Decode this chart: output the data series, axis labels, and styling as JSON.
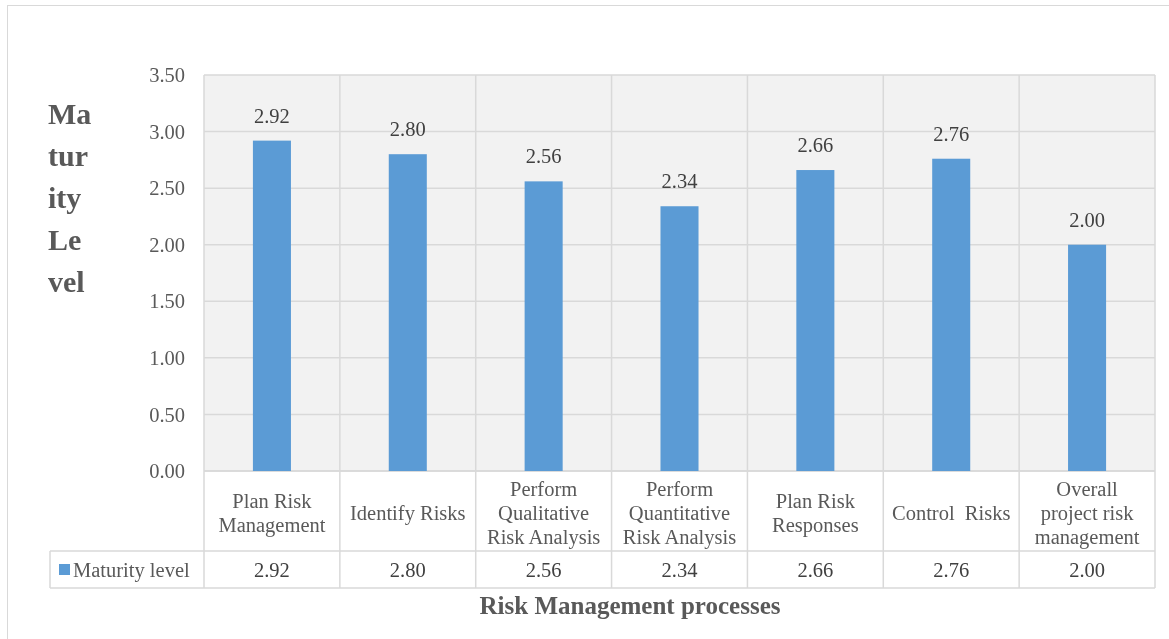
{
  "chart_data": {
    "type": "bar",
    "xlabel": "Risk Management processes",
    "ylabel": "Maturity Level",
    "categories": [
      "Plan Risk Management",
      "Identify Risks",
      "Perform Qualitative Risk Analysis",
      "Perform Quantitative Risk Analysis",
      "Plan Risk Responses",
      "Control  Risks",
      "Overall project risk management"
    ],
    "series": [
      {
        "name": "Maturity level",
        "color": "#5b9bd5",
        "values": [
          2.92,
          2.8,
          2.56,
          2.34,
          2.66,
          2.76,
          2.0
        ],
        "value_labels": [
          "2.92",
          "2.80",
          "2.56",
          "2.34",
          "2.66",
          "2.76",
          "2.00"
        ]
      }
    ],
    "ylim": [
      0,
      3.5
    ],
    "yticks": [
      {
        "value": 0,
        "label": "0.00"
      },
      {
        "value": 0.5,
        "label": "0.50"
      },
      {
        "value": 1,
        "label": "1.00"
      },
      {
        "value": 1.5,
        "label": "1.50"
      },
      {
        "value": 2,
        "label": "2.00"
      },
      {
        "value": 2.5,
        "label": "2.50"
      },
      {
        "value": 3,
        "label": "3.00"
      },
      {
        "value": 3.5,
        "label": "3.50"
      }
    ],
    "grid": true,
    "legend": "bottom left"
  }
}
